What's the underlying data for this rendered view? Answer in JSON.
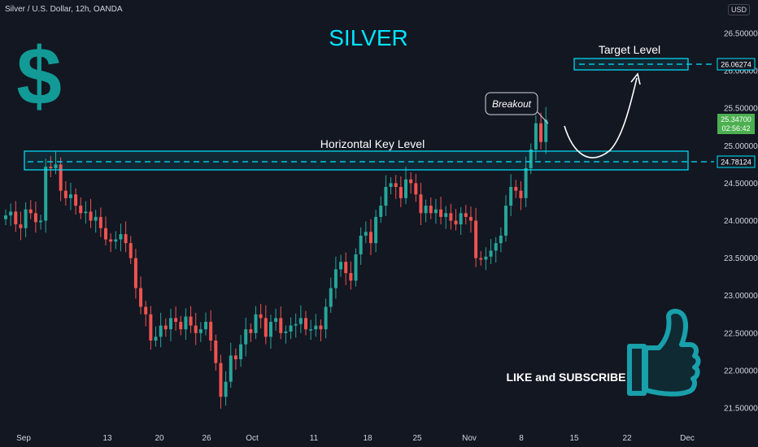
{
  "header": {
    "symbol": "Silver / U.S. Dollar, 12h, OANDA",
    "currency": "USD"
  },
  "annotations": {
    "title": "SILVER",
    "target_label": "Target Level",
    "key_level_label": "Horizontal Key Level",
    "breakout_label": "Breakout",
    "cta": "LIKE and SUBSCRIBE",
    "dollar_icon": "dollar-sign-icon",
    "thumbs_icon": "thumbs-up-icon"
  },
  "colors": {
    "background": "#131722",
    "up": "#26a69a",
    "down": "#ef5350",
    "accent": "#00e5ff",
    "price_tag": "#4caf50"
  },
  "chart_data": {
    "type": "candlestick",
    "title": "SILVER",
    "x_tick_labels": [
      "Sep",
      "13",
      "20",
      "26",
      "Oct",
      "11",
      "18",
      "25",
      "Nov",
      "8",
      "15",
      "22",
      "Dec"
    ],
    "y_tick_labels": [
      "26.50000",
      "26.00000",
      "25.50000",
      "25.00000",
      "24.50000",
      "24.00000",
      "23.50000",
      "23.00000",
      "22.50000",
      "22.00000",
      "21.50000"
    ],
    "ylim": [
      21.4,
      26.9
    ],
    "levels": [
      {
        "name": "Horizontal Key Level",
        "value": 24.78124
      },
      {
        "name": "Target Level",
        "value": 26.06274
      }
    ],
    "current_price": {
      "value": "25.34700",
      "countdown": "02:56:42"
    },
    "key_level_tag": "24.78124",
    "target_level_tag": "26.06274",
    "closes": [
      24.07,
      24.12,
      23.95,
      23.9,
      24.15,
      24.1,
      23.98,
      24.0,
      24.72,
      24.7,
      24.75,
      24.4,
      24.3,
      24.35,
      24.2,
      24.1,
      24.12,
      24.0,
      24.05,
      23.9,
      23.75,
      23.72,
      23.75,
      23.82,
      23.7,
      23.5,
      23.1,
      22.85,
      22.75,
      22.4,
      22.45,
      22.6,
      22.55,
      22.7,
      22.65,
      22.55,
      22.72,
      22.6,
      22.5,
      22.55,
      22.65,
      22.4,
      22.1,
      21.65,
      21.85,
      22.2,
      22.15,
      22.35,
      22.55,
      22.5,
      22.75,
      22.7,
      22.45,
      22.65,
      22.7,
      22.5,
      22.52,
      22.6,
      22.62,
      22.7,
      22.55,
      22.55,
      22.6,
      22.55,
      22.85,
      23.1,
      23.35,
      23.45,
      23.3,
      23.2,
      23.55,
      23.8,
      23.85,
      23.7,
      24.05,
      24.2,
      24.45,
      24.5,
      24.45,
      24.3,
      24.55,
      24.5,
      24.35,
      24.1,
      24.2,
      24.1,
      24.15,
      24.05,
      24.1,
      24.0,
      23.95,
      24.1,
      24.05,
      24.0,
      23.5,
      23.48,
      23.52,
      23.6,
      23.7,
      23.8,
      24.2,
      24.45,
      24.4,
      24.3,
      24.7,
      24.95,
      25.3,
      25.05,
      25.347
    ],
    "highs_offset": 0.08,
    "lows_offset": 0.08
  }
}
